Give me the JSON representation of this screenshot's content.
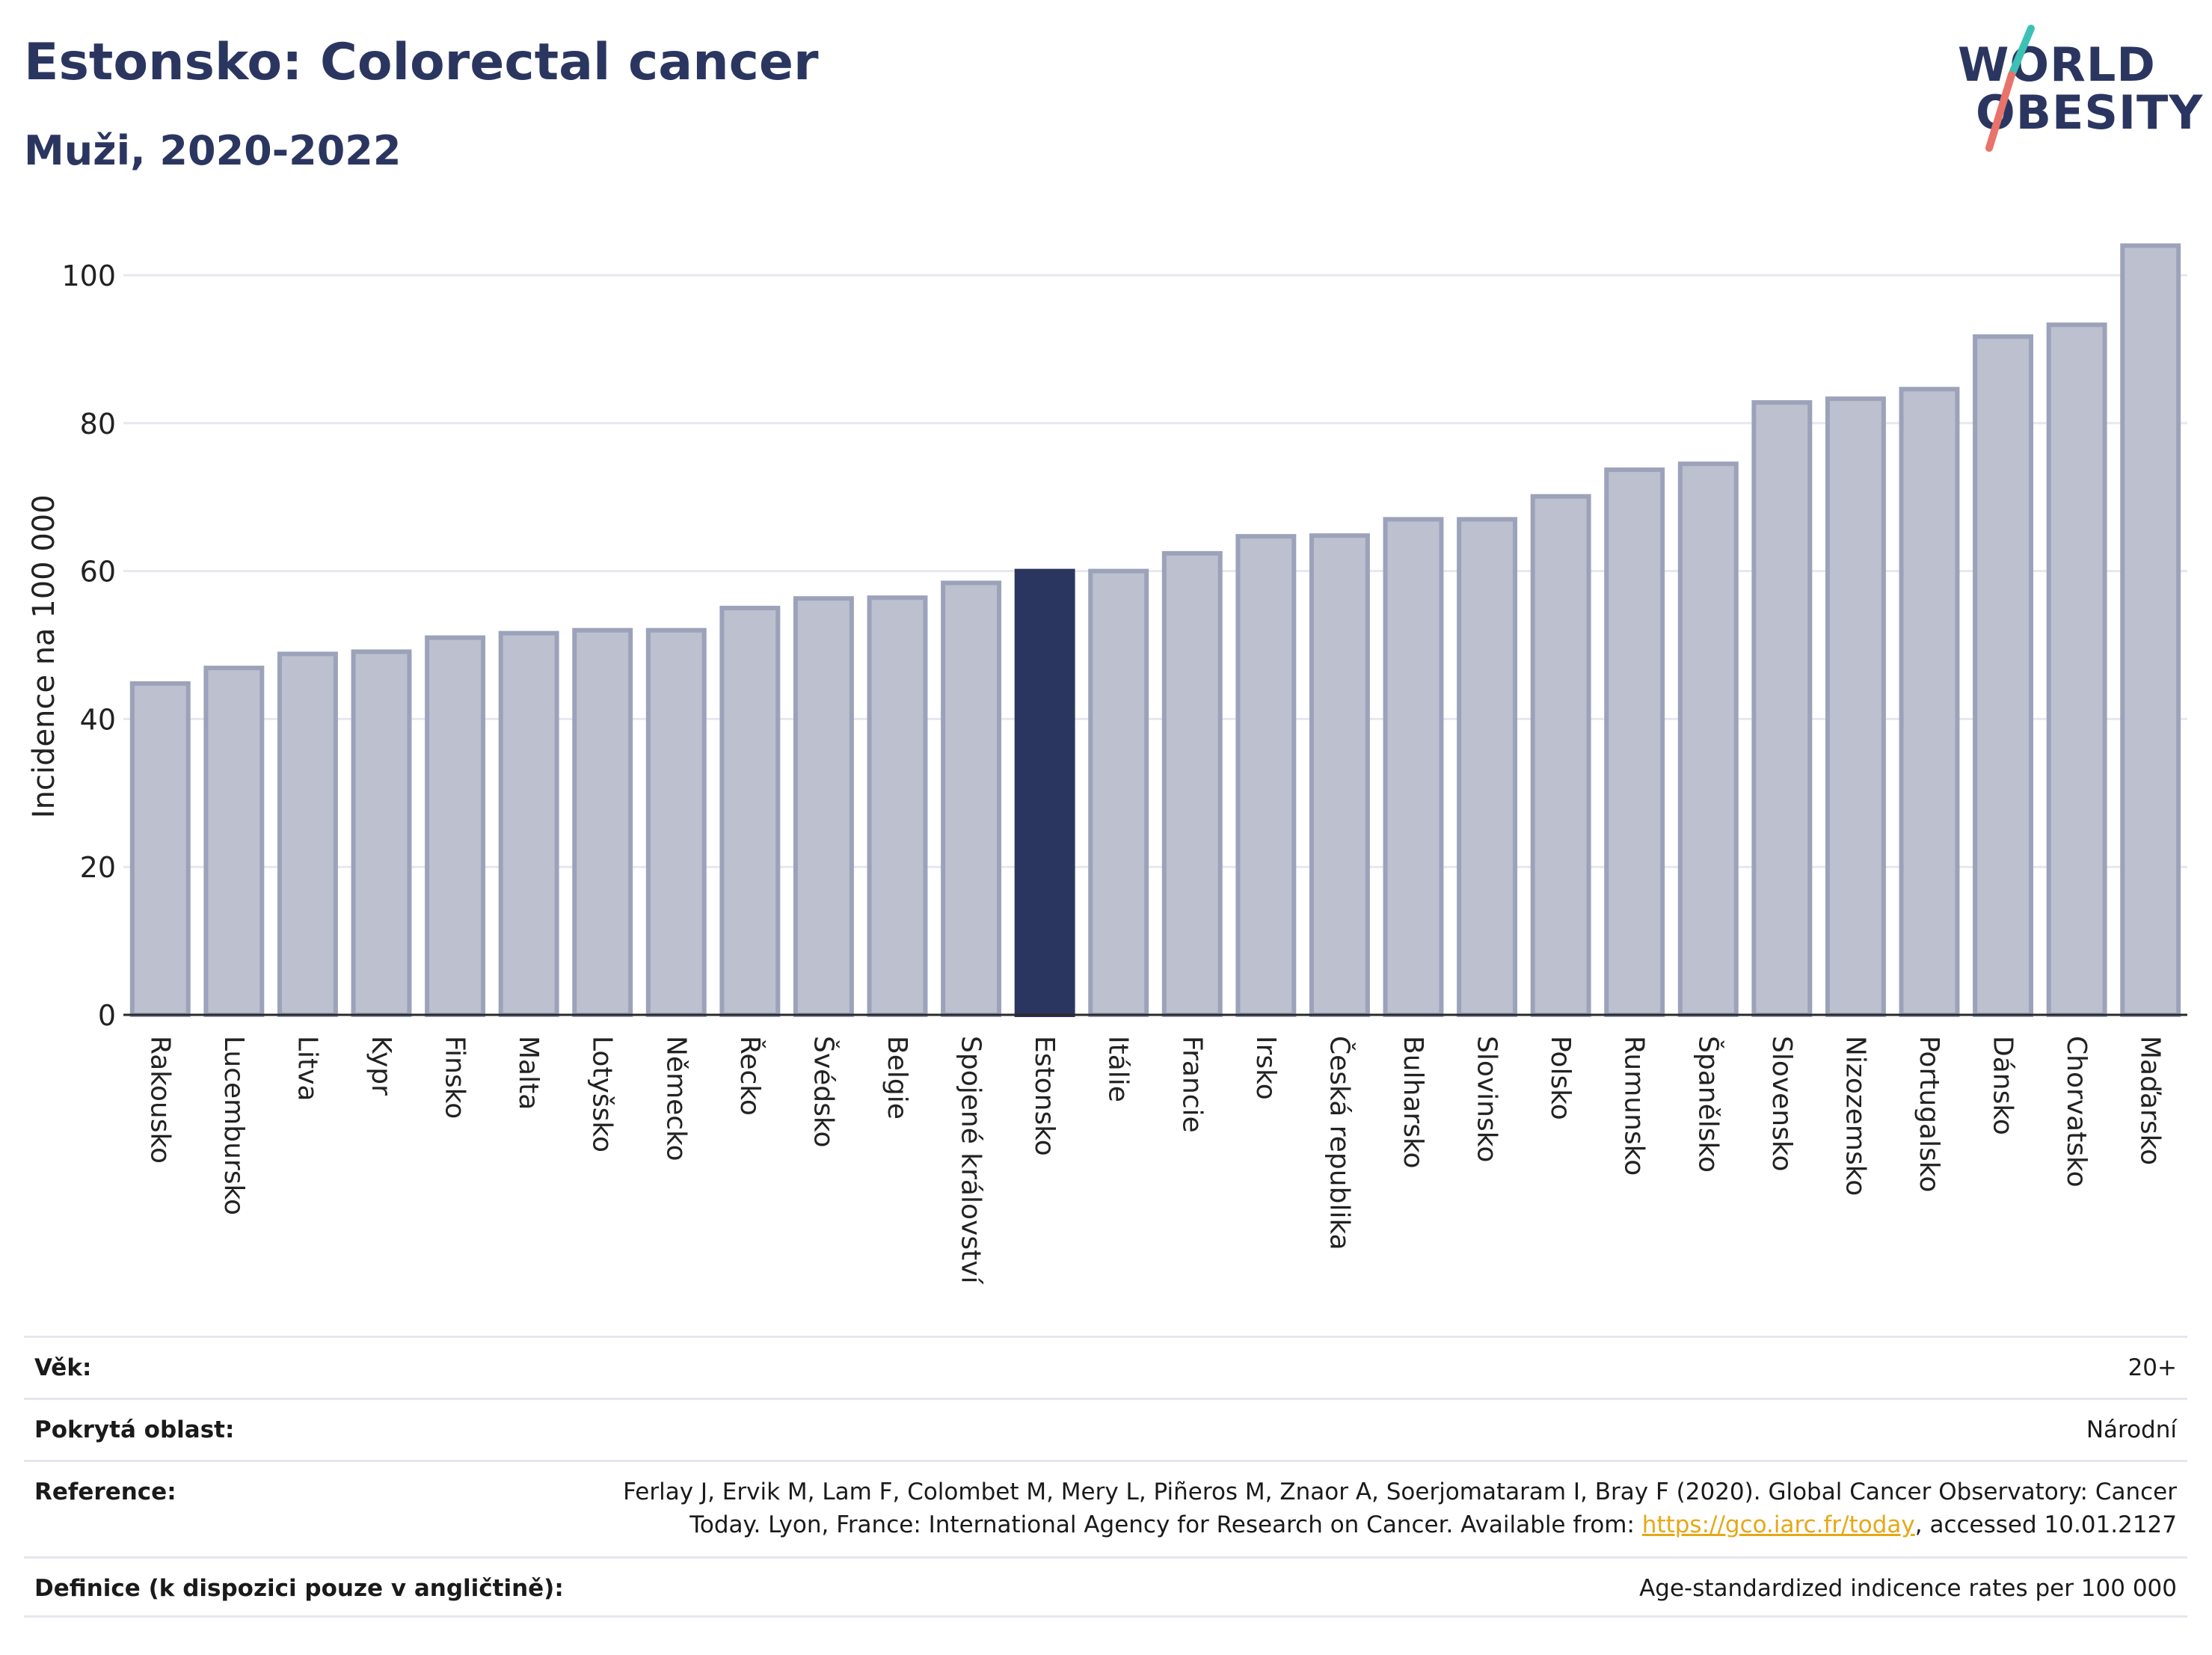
{
  "header": {
    "title": "Estonsko: Colorectal cancer",
    "subtitle": "Muži, 2020-2022"
  },
  "logo": {
    "line1": "WORLD",
    "line2": "OBESITY",
    "stroke_colors": [
      "#3cc1b6",
      "#e8736a"
    ]
  },
  "chart_data": {
    "type": "bar",
    "ylabel": "Incidence na 100 000",
    "ylim": [
      0,
      105
    ],
    "yticks": [
      0,
      20,
      40,
      60,
      80,
      100
    ],
    "grid": true,
    "highlight": "Estonsko",
    "colors": {
      "bar": "#bcc0cf",
      "bar_border": "#9ca2b9",
      "highlight": "#2b3660"
    },
    "categories": [
      "Rakousko",
      "Lucembursko",
      "Litva",
      "Kypr",
      "Finsko",
      "Malta",
      "Lotyšsko",
      "Německo",
      "Řecko",
      "Švédsko",
      "Belgie",
      "Spojené království",
      "Estonsko",
      "Itálie",
      "Francie",
      "Irsko",
      "Česká republika",
      "Bulharsko",
      "Slovinsko",
      "Polsko",
      "Rumunsko",
      "Španělsko",
      "Slovensko",
      "Nizozemsko",
      "Portugalsko",
      "Dánsko",
      "Chorvatsko",
      "Maďarsko"
    ],
    "values": [
      44.8,
      46.9,
      48.8,
      49.1,
      51.0,
      51.6,
      52.0,
      52.0,
      55.0,
      56.3,
      56.4,
      58.4,
      60.0,
      60.0,
      62.4,
      64.7,
      64.8,
      67.0,
      67.0,
      70.1,
      73.7,
      74.5,
      82.8,
      83.3,
      84.6,
      91.7,
      93.3,
      104.0
    ]
  },
  "info": {
    "rows": [
      {
        "label": "Věk:",
        "value": "20+"
      },
      {
        "label": "Pokrytá oblast:",
        "value": "Národní"
      },
      {
        "label": "Reference:",
        "value_line1": "Ferlay J, Ervik M, Lam F, Colombet M, Mery L, Piñeros M, Znaor A, Soerjomataram I, Bray F (2020). Global Cancer Observatory: Cancer",
        "value_line2_pre": "Today. Lyon, France: International Agency for Research on Cancer. Available from: ",
        "link": "https://gco.iarc.fr/today",
        "value_line2_post": ", accessed 10.01.2127"
      },
      {
        "label": "Definice (k dispozici pouze v angličtině):",
        "value": "Age-standardized indicence rates per 100 000"
      }
    ]
  }
}
